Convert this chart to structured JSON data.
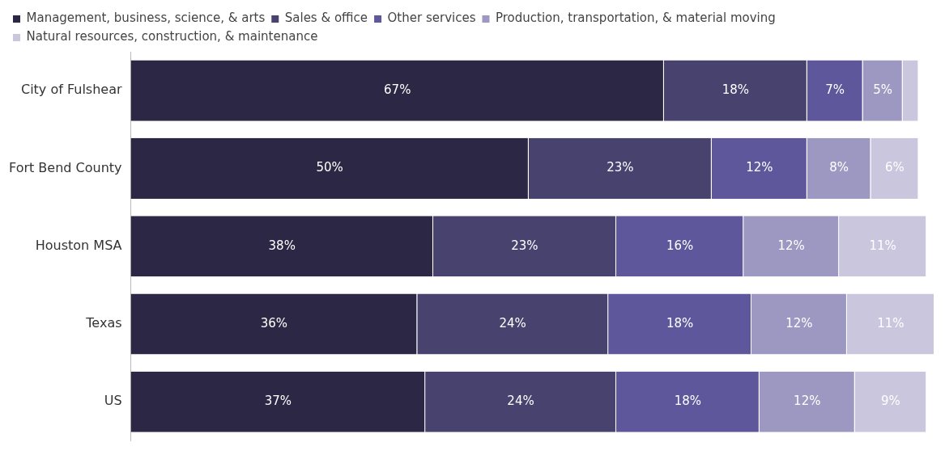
{
  "chart_data": {
    "type": "bar",
    "orientation": "horizontal",
    "stacked": true,
    "legend": "top",
    "tick_labels": "y",
    "xlim": [
      0,
      101
    ],
    "categories": [
      "City of Fulshear",
      "Fort Bend County",
      "Houston MSA",
      "Texas",
      "US"
    ],
    "series": [
      {
        "name": "Management, business, science, & arts",
        "color": "#2b2744",
        "values": [
          67,
          50,
          38,
          36,
          37
        ],
        "value_labels": [
          "67%",
          "50%",
          "38%",
          "36%",
          "37%"
        ]
      },
      {
        "name": "Sales & office",
        "color": "#48426e",
        "values": [
          18,
          23,
          23,
          24,
          24
        ],
        "value_labels": [
          "18%",
          "23%",
          "23%",
          "24%",
          "24%"
        ]
      },
      {
        "name": "Other services",
        "color": "#5f579c",
        "values": [
          7,
          12,
          16,
          18,
          18
        ],
        "value_labels": [
          "7%",
          "12%",
          "16%",
          "18%",
          "18%"
        ]
      },
      {
        "name": "Production, transportation, & material moving",
        "color": "#9d98c2",
        "values": [
          5,
          8,
          12,
          12,
          12
        ],
        "value_labels": [
          "5%",
          "8%",
          "12%",
          "12%",
          "12%"
        ]
      },
      {
        "name": "Natural resources, construction, & maintenance",
        "color": "#c9c6dd",
        "values": [
          2,
          6,
          11,
          11,
          9
        ],
        "value_labels": [
          null,
          "6%",
          "11%",
          "11%",
          "9%"
        ]
      }
    ]
  }
}
